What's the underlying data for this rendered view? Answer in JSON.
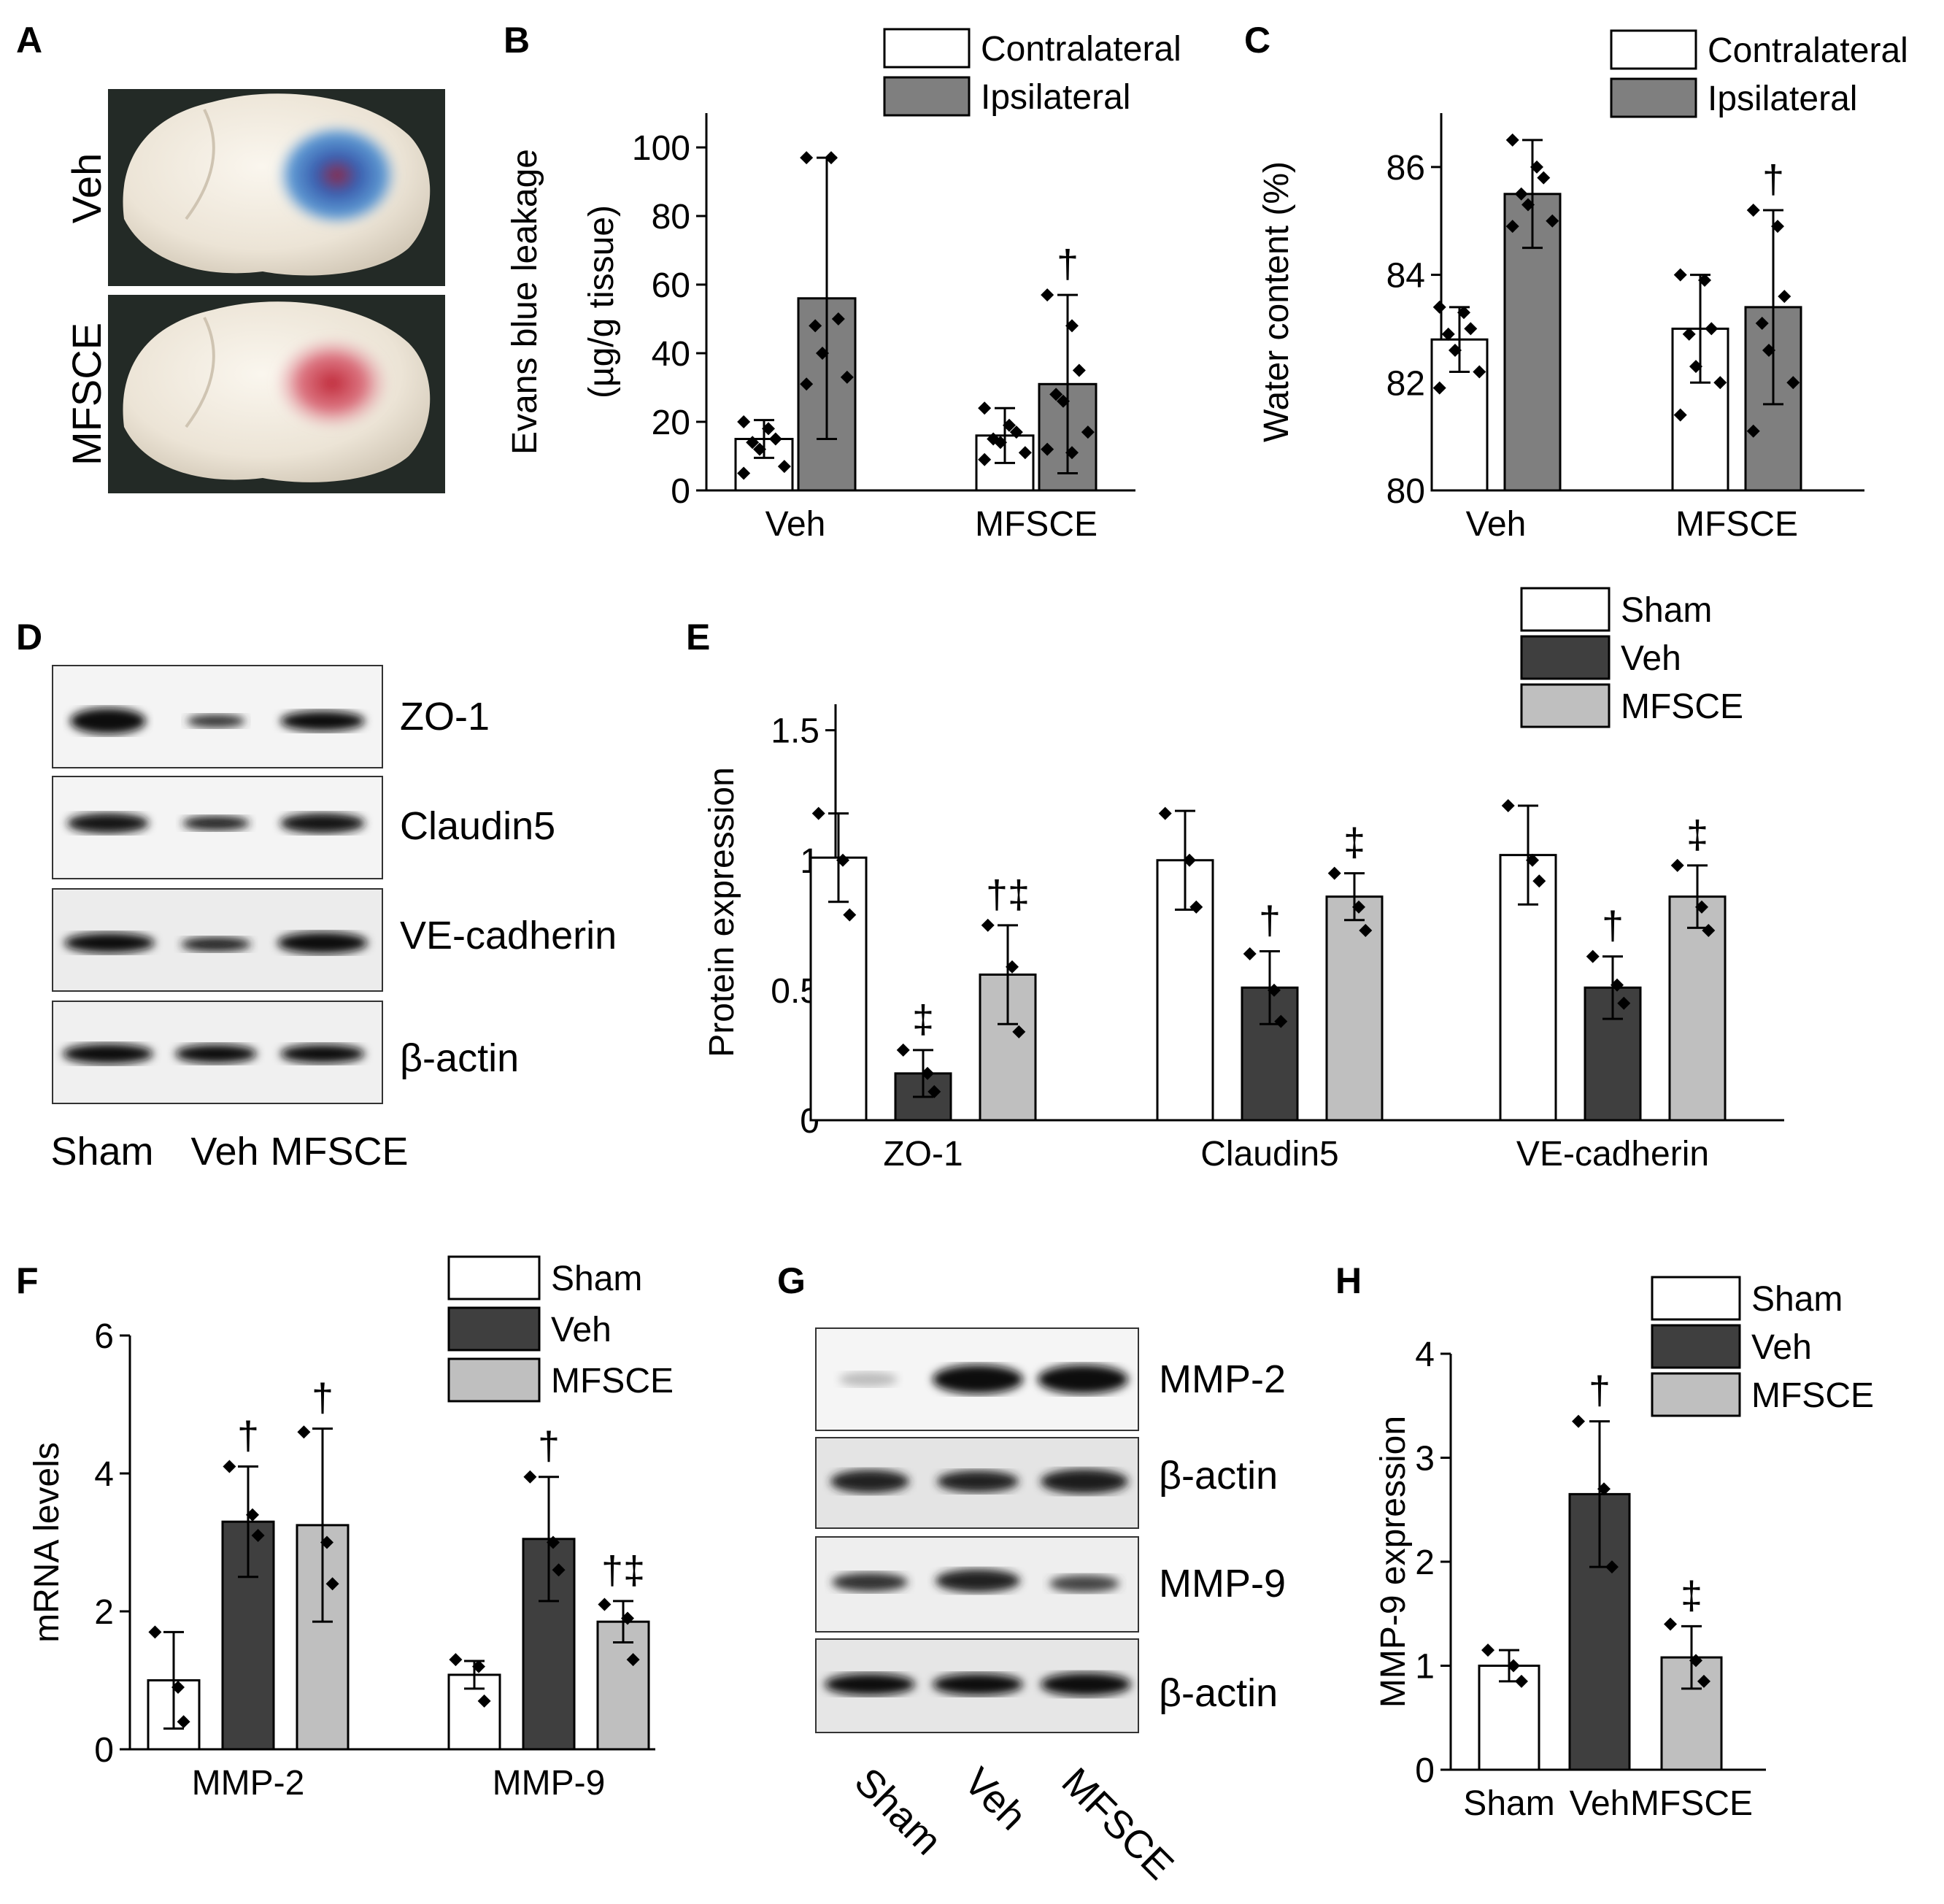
{
  "panel_labels": [
    "A",
    "B",
    "C",
    "D",
    "E",
    "F",
    "G",
    "H"
  ],
  "panel_a": {
    "rows": [
      "Veh",
      "MFSCE"
    ]
  },
  "panel_d": {
    "bands": [
      "ZO-1",
      "Claudin5",
      "VE-cadherin",
      "β-actin"
    ],
    "lanes": [
      "Sham",
      "Veh",
      "MFSCE"
    ]
  },
  "panel_g": {
    "bands": [
      "MMP-2",
      "β-actin",
      "MMP-9",
      "β-actin"
    ],
    "lanes": [
      "Sham",
      "Veh",
      "MFSCE"
    ]
  },
  "colors": {
    "white": "#ffffff",
    "darkgray": "#7f7f7f",
    "black": "#3f3f3f",
    "lightgray": "#bfbfbf"
  },
  "chart_data": [
    {
      "panel": "B",
      "type": "bar",
      "categories": [
        "Veh",
        "MFSCE"
      ],
      "ylabel": "Evans blue leakage",
      "ylabel2": "(µg/g tissue)",
      "ylim": [
        0,
        110
      ],
      "yticks": [
        "0",
        "20",
        "40",
        "60",
        "80",
        "100"
      ],
      "ytick_values": [
        0,
        20,
        40,
        60,
        80,
        100
      ],
      "legend_position": "top",
      "series": [
        {
          "name": "Contralateral",
          "color": "#ffffff",
          "values": [
            15,
            16
          ],
          "err": [
            5.5,
            8
          ],
          "marks": [
            "",
            ""
          ],
          "points": [
            [
              20,
              18,
              15,
              14,
              12,
              7,
              5
            ],
            [
              24,
              19,
              17,
              15,
              14,
              11,
              9
            ]
          ]
        },
        {
          "name": "Ipsilateral",
          "color": "#7f7f7f",
          "values": [
            56,
            31
          ],
          "err": [
            41,
            26
          ],
          "marks": [
            "",
            "†"
          ],
          "points": [
            [
              97,
              97,
              50,
              48,
              40,
              33,
              31
            ],
            [
              57,
              48,
              35,
              28,
              26,
              17,
              12,
              11
            ]
          ]
        }
      ]
    },
    {
      "panel": "C",
      "type": "bar",
      "categories": [
        "Veh",
        "MFSCE"
      ],
      "ylabel": "Water content (%)",
      "ylim": [
        80,
        87
      ],
      "yticks": [
        "80",
        "82",
        "84",
        "86"
      ],
      "ytick_values": [
        80,
        82,
        84,
        86
      ],
      "legend_position": "top",
      "series": [
        {
          "name": "Contralateral",
          "color": "#ffffff",
          "values": [
            82.8,
            83.0
          ],
          "err": [
            0.6,
            1.0
          ],
          "marks": [
            "",
            ""
          ],
          "points": [
            [
              83.4,
              83.3,
              83.0,
              82.9,
              82.6,
              82.2,
              81.9
            ],
            [
              84.0,
              83.9,
              83.0,
              82.9,
              82.3,
              82.0,
              81.4
            ]
          ]
        },
        {
          "name": "Ipsilateral",
          "color": "#7f7f7f",
          "values": [
            85.5,
            83.4
          ],
          "err": [
            1.0,
            1.8
          ],
          "marks": [
            "",
            "†"
          ],
          "points": [
            [
              86.5,
              86.0,
              85.8,
              85.5,
              85.3,
              85.0,
              84.9
            ],
            [
              85.2,
              84.9,
              83.6,
              83.1,
              82.6,
              82.0,
              81.1
            ]
          ]
        }
      ]
    },
    {
      "panel": "E",
      "type": "bar",
      "categories": [
        "ZO-1",
        "Claudin5",
        "VE-cadherin"
      ],
      "ylabel": "Protein  expression",
      "ylim": [
        0,
        1.6
      ],
      "yticks": [
        "0",
        "0.5",
        "1",
        "1.5"
      ],
      "ytick_values": [
        0,
        0.5,
        1,
        1.5
      ],
      "legend_position": "top-right",
      "series": [
        {
          "name": "Sham",
          "color": "#ffffff",
          "values": [
            1.01,
            1.0,
            1.02
          ],
          "err": [
            0.17,
            0.19,
            0.19
          ],
          "marks": [
            "",
            "",
            ""
          ],
          "points": [
            [
              1.18,
              1.0,
              0.79
            ],
            [
              1.18,
              1.0,
              0.82
            ],
            [
              1.21,
              1.0,
              0.92
            ]
          ]
        },
        {
          "name": "Veh",
          "color": "#3f3f3f",
          "values": [
            0.18,
            0.51,
            0.51
          ],
          "err": [
            0.09,
            0.14,
            0.12
          ],
          "marks": [
            "‡",
            "†",
            "†"
          ],
          "points": [
            [
              0.27,
              0.18,
              0.11
            ],
            [
              0.64,
              0.5,
              0.38
            ],
            [
              0.63,
              0.52,
              0.45
            ]
          ]
        },
        {
          "name": "MFSCE",
          "color": "#bfbfbf",
          "values": [
            0.56,
            0.86,
            0.86
          ],
          "err": [
            0.19,
            0.09,
            0.12
          ],
          "marks": [
            "†‡",
            "‡",
            "‡"
          ],
          "points": [
            [
              0.75,
              0.59,
              0.34
            ],
            [
              0.95,
              0.82,
              0.73
            ],
            [
              0.98,
              0.82,
              0.73
            ]
          ]
        }
      ]
    },
    {
      "panel": "F",
      "type": "bar",
      "categories": [
        "MMP-2",
        "MMP-9"
      ],
      "ylabel": "mRNA levels",
      "ylim": [
        0,
        6
      ],
      "yticks": [
        "0",
        "2",
        "4",
        "6"
      ],
      "ytick_values": [
        0,
        2,
        4,
        6
      ],
      "legend_position": "top-right",
      "series": [
        {
          "name": "Sham",
          "color": "#ffffff",
          "values": [
            1.0,
            1.08
          ],
          "err": [
            0.7,
            0.2
          ],
          "marks": [
            "",
            ""
          ],
          "points": [
            [
              1.7,
              0.9,
              0.4
            ],
            [
              1.3,
              1.2,
              0.7
            ]
          ]
        },
        {
          "name": "Veh",
          "color": "#3f3f3f",
          "values": [
            3.3,
            3.05
          ],
          "err": [
            0.8,
            0.9
          ],
          "marks": [
            "†",
            "†"
          ],
          "points": [
            [
              4.1,
              3.4,
              3.1
            ],
            [
              3.95,
              3.0,
              2.6
            ]
          ]
        },
        {
          "name": "MFSCE",
          "color": "#bfbfbf",
          "values": [
            3.25,
            1.85
          ],
          "err": [
            1.4,
            0.3
          ],
          "marks": [
            "†",
            "†‡"
          ],
          "points": [
            [
              4.6,
              3.0,
              2.4
            ],
            [
              2.1,
              1.9,
              1.3
            ]
          ]
        }
      ]
    },
    {
      "panel": "H",
      "type": "bar",
      "categories": [
        "Sham",
        "Veh",
        "MFSCE"
      ],
      "ylabel": "MMP-9 expression",
      "ylim": [
        0,
        4
      ],
      "yticks": [
        "0",
        "1",
        "2",
        "3",
        "4"
      ],
      "ytick_values": [
        0,
        1,
        2,
        3,
        4
      ],
      "legend_position": "top-right",
      "series": [
        {
          "name": "Sham",
          "color": "#ffffff",
          "values": [
            1.0,
            null,
            null
          ],
          "err": [
            0.15,
            null,
            null
          ],
          "marks": [
            "",
            "",
            ""
          ],
          "points": [
            [
              1.15,
              1.0,
              0.85
            ],
            [],
            []
          ]
        },
        {
          "name": "Veh",
          "color": "#3f3f3f",
          "values": [
            null,
            2.65,
            null
          ],
          "err": [
            null,
            0.7,
            null
          ],
          "marks": [
            "",
            "†",
            ""
          ],
          "points": [
            [],
            [
              3.35,
              2.7,
              1.95
            ],
            []
          ]
        },
        {
          "name": "MFSCE",
          "color": "#bfbfbf",
          "values": [
            null,
            null,
            1.08
          ],
          "err": [
            null,
            null,
            0.3
          ],
          "marks": [
            "",
            "",
            "‡"
          ],
          "points": [
            [],
            [],
            [
              1.4,
              1.05,
              0.85
            ]
          ]
        }
      ]
    }
  ]
}
